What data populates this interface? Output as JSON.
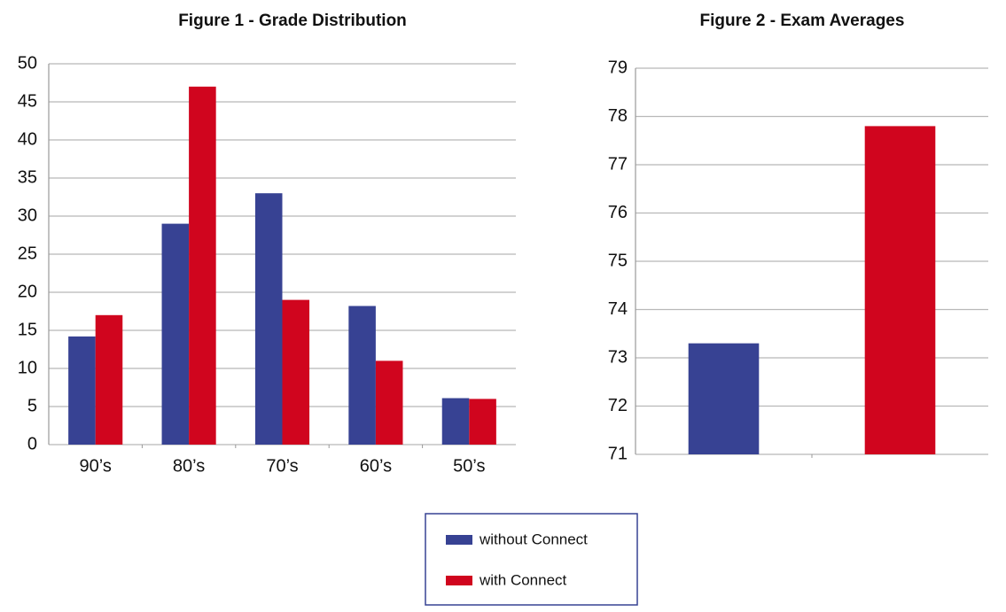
{
  "chart_data": [
    {
      "type": "bar",
      "title": "Figure 1 - Grade Distribution",
      "categories": [
        "90’s",
        "80’s",
        "70’s",
        "60’s",
        "50’s"
      ],
      "series": [
        {
          "name": "without Connect",
          "color": "#374293",
          "values": [
            14.2,
            29,
            33,
            18.2,
            6.1
          ]
        },
        {
          "name": "with Connect",
          "color": "#d0051e",
          "values": [
            17,
            47,
            19,
            11,
            6
          ]
        }
      ],
      "ylim": [
        0,
        50
      ],
      "yticks": [
        0,
        5,
        10,
        15,
        20,
        25,
        30,
        35,
        40,
        45,
        50
      ],
      "grid": true
    },
    {
      "type": "bar",
      "title": "Figure 2 - Exam Averages",
      "categories": [
        null,
        null
      ],
      "values": [
        73.3,
        77.8
      ],
      "colors": [
        "#374293",
        "#d0051e"
      ],
      "ylim": [
        71,
        79
      ],
      "yticks": [
        71,
        72,
        73,
        74,
        75,
        76,
        77,
        78,
        79
      ],
      "grid": true
    }
  ]
}
